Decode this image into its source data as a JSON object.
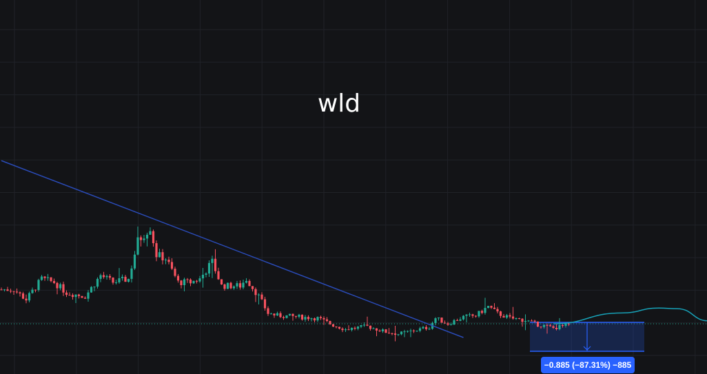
{
  "chart_data": {
    "type": "candlestick",
    "title": "wld",
    "grid": true,
    "colors": {
      "up": "#22ab94",
      "down": "#f7525f",
      "trendline": "#2a4bb8",
      "projection": "#17a2b8",
      "measure": "#2962ff",
      "background": "#131417",
      "grid": "#202228"
    },
    "price_keypoints": [
      [
        0,
        2.02
      ],
      [
        4,
        2.02
      ],
      [
        8,
        1.71
      ],
      [
        13,
        2.34
      ],
      [
        17,
        2.24
      ],
      [
        21,
        1.92
      ],
      [
        27,
        1.81
      ],
      [
        32,
        2.45
      ],
      [
        36,
        2.24
      ],
      [
        41,
        2.34
      ],
      [
        44,
        3.5
      ],
      [
        48,
        3.92
      ],
      [
        50,
        3.08
      ],
      [
        53,
        2.97
      ],
      [
        57,
        2.24
      ],
      [
        61,
        2.24
      ],
      [
        64,
        2.34
      ],
      [
        68,
        2.87
      ],
      [
        71,
        2.13
      ],
      [
        77,
        2.13
      ],
      [
        79,
        2.34
      ],
      [
        83,
        1.81
      ],
      [
        86,
        1.29
      ],
      [
        89,
        1.22
      ],
      [
        96,
        1.18
      ],
      [
        102,
        1.14
      ],
      [
        107,
        0.93
      ],
      [
        111,
        0.8
      ],
      [
        118,
        0.89
      ],
      [
        124,
        0.72
      ],
      [
        128,
        0.66
      ],
      [
        133,
        0.76
      ],
      [
        138,
        0.87
      ],
      [
        140,
        1.14
      ],
      [
        144,
        0.97
      ],
      [
        149,
        1.18
      ],
      [
        153,
        1.22
      ],
      [
        157,
        1.5
      ],
      [
        160,
        1.29
      ],
      [
        164,
        1.14
      ],
      [
        169,
        1.08
      ],
      [
        172,
        0.97
      ],
      [
        178,
        0.84
      ],
      [
        183,
        0.93
      ]
    ],
    "current_price": 0.97,
    "trendline": {
      "start": [
        0,
        5.96
      ],
      "end": [
        149,
        0.55
      ]
    },
    "projection": [
      [
        178,
        0.97
      ],
      [
        200,
        1.3
      ],
      [
        212,
        1.45
      ],
      [
        218,
        1.43
      ],
      [
        228,
        1.06
      ]
    ],
    "measure": {
      "start_price": 1.0136,
      "end_price": 0.1286,
      "label": "−0.885 (−87.31%) −885"
    }
  }
}
